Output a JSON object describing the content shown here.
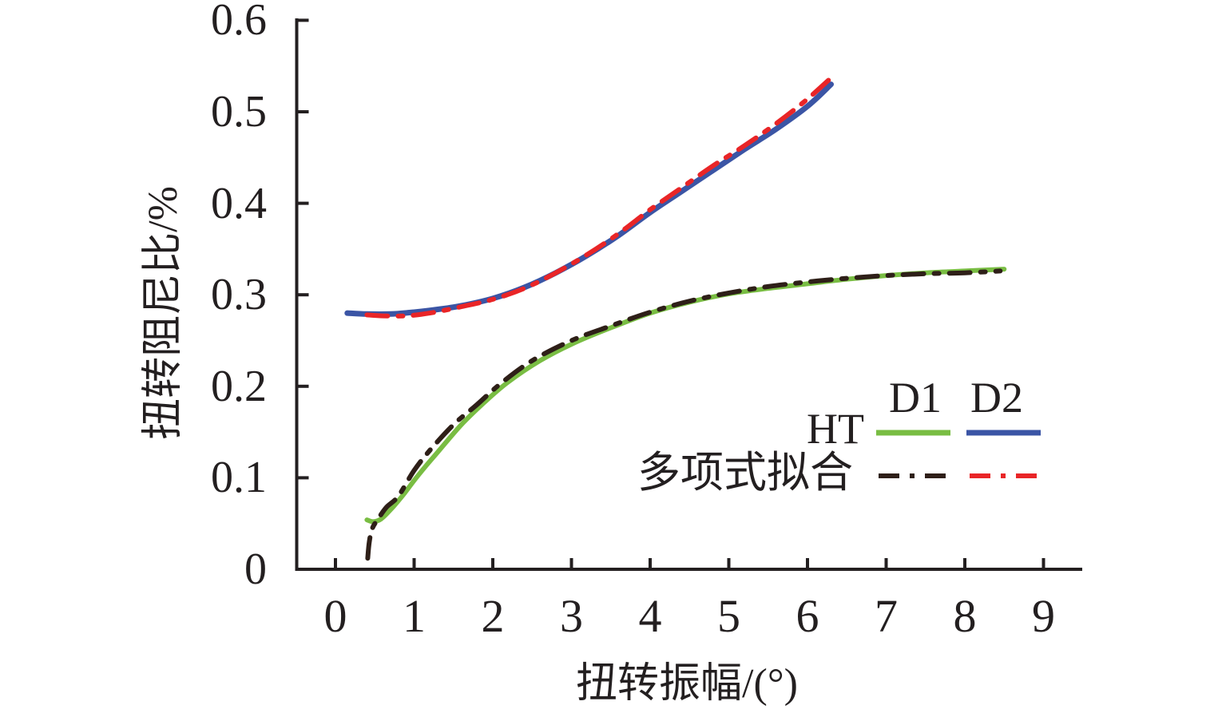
{
  "chart_data": {
    "type": "line",
    "title": "",
    "xlabel": "扭转振幅/(°)",
    "ylabel": "扭转阻尼比/%",
    "xlim": [
      0,
      9
    ],
    "ylim": [
      0,
      0.6
    ],
    "xtick_labels": [
      "0",
      "1",
      "2",
      "3",
      "4",
      "5",
      "6",
      "7",
      "8",
      "9"
    ],
    "ytick_labels": [
      "0",
      "0.1",
      "0.2",
      "0.3",
      "0.4",
      "0.5",
      "0.6"
    ],
    "grid": false,
    "axis_color": "#231f20",
    "legend": {
      "position": "inside-lower-right",
      "col_d1": "D1",
      "col_d2": "D2",
      "row_ht": "HT",
      "row_polyfit": "多项式拟合"
    },
    "series": [
      {
        "name": "HT D1",
        "legend_row": "HT",
        "legend_col": "D1",
        "color": "#79bd43",
        "style": "solid",
        "x": [
          0.4,
          0.48,
          0.58,
          0.7,
          0.85,
          1.0,
          1.15,
          1.3,
          1.6,
          1.9,
          2.2,
          2.6,
          3.0,
          3.5,
          4.0,
          4.5,
          5.0,
          5.5,
          6.0,
          6.5,
          7.0,
          7.5,
          8.0,
          8.5
        ],
        "y": [
          0.054,
          0.052,
          0.055,
          0.065,
          0.08,
          0.097,
          0.113,
          0.128,
          0.158,
          0.183,
          0.205,
          0.228,
          0.246,
          0.264,
          0.28,
          0.292,
          0.301,
          0.307,
          0.312,
          0.317,
          0.321,
          0.324,
          0.326,
          0.328
        ]
      },
      {
        "name": "HT D2",
        "legend_row": "HT",
        "legend_col": "D2",
        "color": "#3b55a5",
        "style": "solid",
        "x": [
          0.15,
          0.4,
          0.7,
          1.0,
          1.3,
          1.6,
          2.0,
          2.4,
          2.8,
          3.2,
          3.6,
          4.0,
          4.4,
          4.8,
          5.2,
          5.6,
          6.0,
          6.3
        ],
        "y": [
          0.28,
          0.279,
          0.279,
          0.281,
          0.284,
          0.288,
          0.296,
          0.308,
          0.324,
          0.343,
          0.365,
          0.39,
          0.413,
          0.436,
          0.459,
          0.481,
          0.506,
          0.53
        ]
      },
      {
        "name": "多项式拟合 D1",
        "legend_row": "多项式拟合",
        "legend_col": "D1",
        "color": "#2e1f18",
        "style": "dashdot",
        "x": [
          0.41,
          0.43,
          0.47,
          0.55,
          0.65,
          0.8,
          1.0,
          1.2,
          1.5,
          1.8,
          2.1,
          2.5,
          3.0,
          3.5,
          4.0,
          4.5,
          5.0,
          5.5,
          6.0,
          6.5,
          7.0,
          7.5,
          8.0,
          8.45
        ],
        "y": [
          0.012,
          0.03,
          0.045,
          0.056,
          0.068,
          0.08,
          0.108,
          0.13,
          0.158,
          0.18,
          0.203,
          0.228,
          0.25,
          0.266,
          0.281,
          0.293,
          0.302,
          0.309,
          0.314,
          0.318,
          0.321,
          0.323,
          0.324,
          0.326
        ]
      },
      {
        "name": "多项式拟合 D2",
        "legend_row": "多项式拟合",
        "legend_col": "D2",
        "color": "#e92527",
        "style": "dashdot",
        "x": [
          0.4,
          0.6,
          0.9,
          1.2,
          1.6,
          2.0,
          2.4,
          2.8,
          3.2,
          3.6,
          4.0,
          4.4,
          4.8,
          5.2,
          5.6,
          6.0,
          6.35
        ],
        "y": [
          0.278,
          0.277,
          0.277,
          0.28,
          0.287,
          0.295,
          0.307,
          0.324,
          0.344,
          0.367,
          0.393,
          0.417,
          0.441,
          0.463,
          0.487,
          0.514,
          0.541
        ]
      }
    ]
  }
}
